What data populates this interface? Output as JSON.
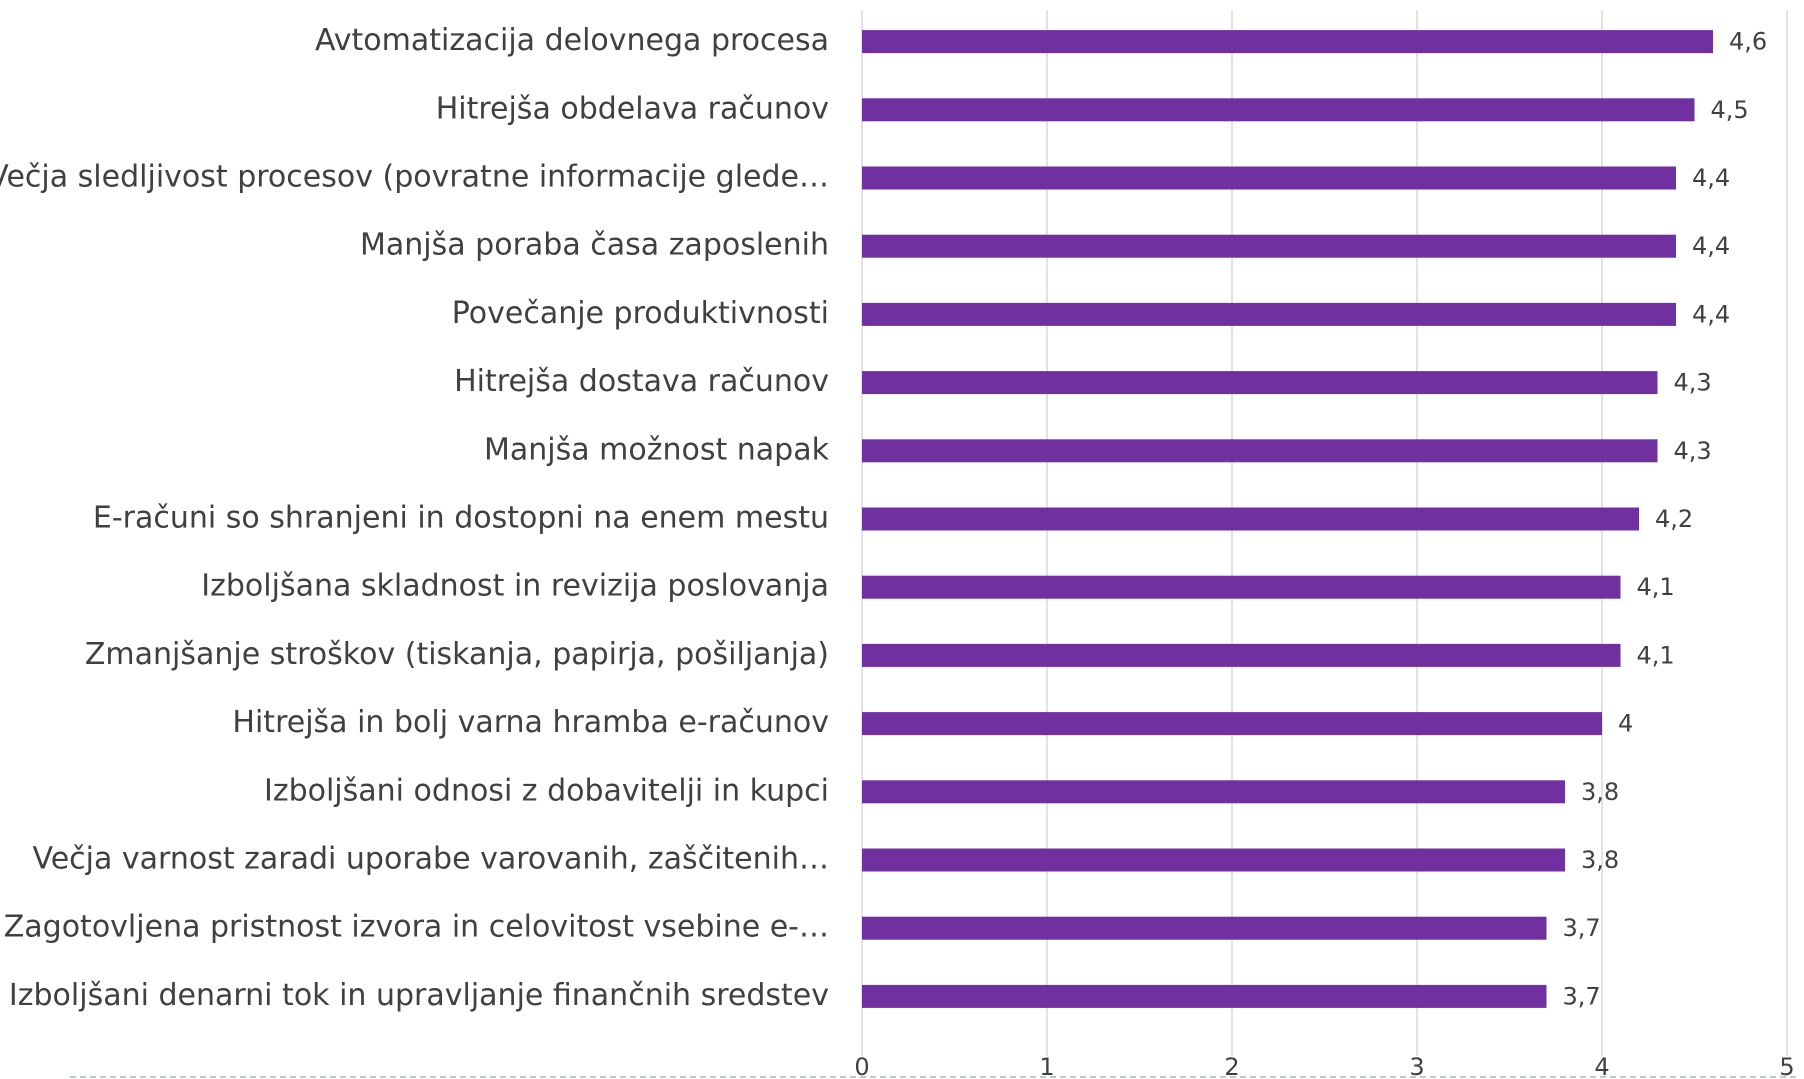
{
  "chart_data": {
    "type": "bar",
    "orientation": "horizontal",
    "categories": [
      "Avtomatizacija delovnega procesa",
      "Hitrejša obdelava računov",
      "Večja sledljivost procesov (povratne informacije glede…",
      "Manjša poraba časa zaposlenih",
      "Povečanje produktivnosti",
      "Hitrejša dostava računov",
      "Manjša možnost napak",
      "E-računi so shranjeni in dostopni na enem mestu",
      "Izboljšana skladnost in revizija poslovanja",
      "Zmanjšanje stroškov (tiskanja, papirja, pošiljanja)",
      "Hitrejša in bolj varna hramba e-računov",
      "Izboljšani odnosi z dobavitelji in kupci",
      "Večja varnost zaradi uporabe varovanih, zaščitenih…",
      "Zagotovljena pristnost izvora in celovitost vsebine e-…",
      "Izboljšani denarni tok in upravljanje finančnih sredstev"
    ],
    "values": [
      4.6,
      4.5,
      4.4,
      4.4,
      4.4,
      4.3,
      4.3,
      4.2,
      4.1,
      4.1,
      4,
      3.8,
      3.8,
      3.7,
      3.7
    ],
    "value_labels": [
      "4,6",
      "4,5",
      "4,4",
      "4,4",
      "4,4",
      "4,3",
      "4,3",
      "4,2",
      "4,1",
      "4,1",
      "4",
      "3,8",
      "3,8",
      "3,7",
      "3,7"
    ],
    "color": "#7030a0",
    "xlim": [
      0,
      5
    ],
    "xticks": [
      0,
      1,
      2,
      3,
      4,
      5
    ],
    "grid": true
  }
}
